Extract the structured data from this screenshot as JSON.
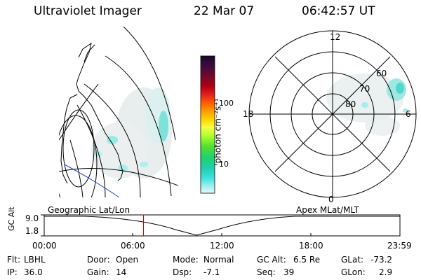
{
  "header": {
    "instrument": "Ultraviolet Imager",
    "date": "22 Mar 07",
    "time": "06:42:57 UT"
  },
  "colorbar": {
    "unit": "photon cm⁻²s⁻¹",
    "ticks": [
      "100",
      "10"
    ],
    "colors": [
      "#1a0a20",
      "#3a0a40",
      "#6a0a30",
      "#8b0000",
      "#c00010",
      "#e02020",
      "#ff5a00",
      "#ff9a00",
      "#ffd000",
      "#f5ff40",
      "#b0ff30",
      "#50e030",
      "#20d070",
      "#20d0b0",
      "#40e0e0",
      "#90f0f0",
      "#d8f6f6"
    ]
  },
  "left_map": {
    "label": "Geographic Lat/Lon"
  },
  "right_map": {
    "label": "Apex  MLat/MLT",
    "mlt_labels": {
      "top": "12",
      "left": "18",
      "right": "6",
      "bottom": "0"
    },
    "lat_labels": [
      "60",
      "70",
      "80"
    ]
  },
  "timeline": {
    "ylabel": "GC Alt",
    "yticks": [
      "9.0",
      "1.8"
    ],
    "xticks": [
      "00:00",
      "06:00",
      "12:00",
      "18:00",
      "23:59"
    ],
    "marker_time_fraction": 0.279
  },
  "status": {
    "flt_label": "Flt:",
    "flt_value": "LBHL",
    "ip_label": "IP:",
    "ip_value": "36.0",
    "door_label": "Door:",
    "door_value": "Open",
    "gain_label": "Gain:",
    "gain_value": "14",
    "mode_label": "Mode:",
    "mode_value": "Normal",
    "dsp_label": "Dsp:",
    "dsp_value": "-7.1",
    "gcalt_label": "GC Alt:",
    "gcalt_value": "6.5 Re",
    "seq_label": "Seq:",
    "seq_value": "39",
    "glat_label": "GLat:",
    "glat_value": "-73.2",
    "glon_label": "GLon:",
    "glon_value": "2.9"
  },
  "accent_colors": {
    "marker": "#c00000",
    "track": "#2040c0"
  }
}
